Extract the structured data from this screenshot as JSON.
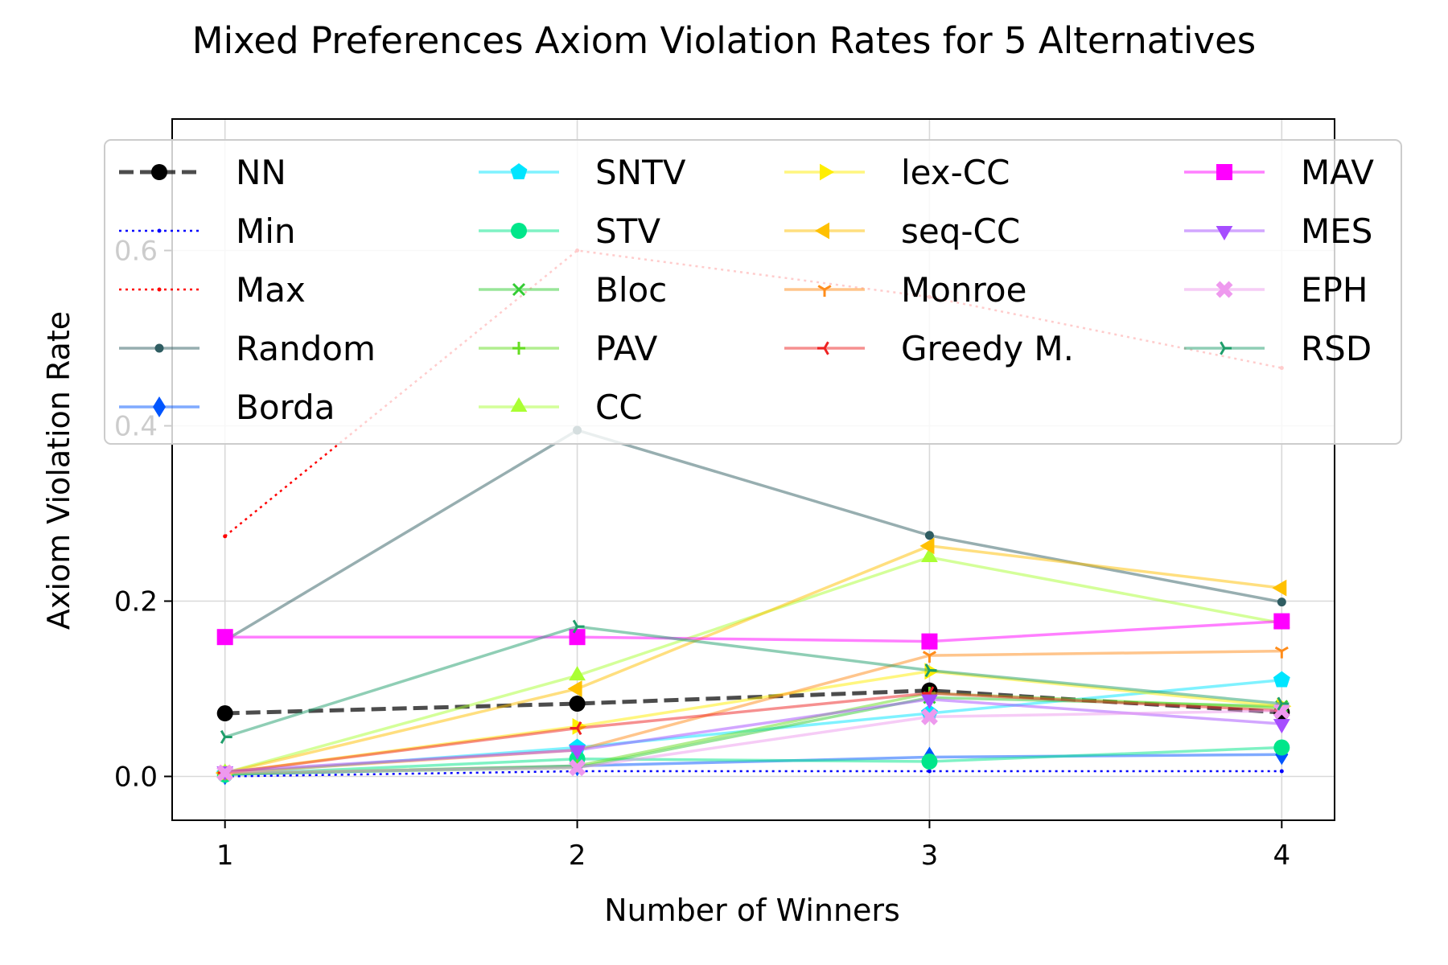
{
  "chart_data": {
    "type": "line",
    "title": "Mixed Preferences Axiom Violation Rates for 5 Alternatives",
    "xlabel": "Number of Winners",
    "ylabel": "Axiom Violation Rate",
    "x": [
      1,
      2,
      3,
      4
    ],
    "x_ticks": [
      "1",
      "2",
      "3",
      "4"
    ],
    "y_ticks": [
      "0.0",
      "0.2",
      "0.4",
      "0.6"
    ],
    "xlim": [
      0.85,
      4.15
    ],
    "ylim": [
      -0.05,
      0.75
    ],
    "grid": true,
    "legend_position": "top",
    "legend_columns": 4,
    "series": [
      {
        "name": "NN",
        "color": "#000000",
        "marker": "circle",
        "dash": "dashed",
        "values": [
          0.072,
          0.083,
          0.098,
          0.073
        ]
      },
      {
        "name": "Min",
        "color": "#0000ff",
        "marker": "point",
        "dash": "dotted",
        "values": [
          0.0,
          0.006,
          0.006,
          0.006
        ]
      },
      {
        "name": "Max",
        "color": "#ff0000",
        "marker": "point",
        "dash": "dotted",
        "values": [
          0.274,
          0.6,
          0.547,
          0.466
        ]
      },
      {
        "name": "Random",
        "color": "#2f5d62",
        "marker": "circle-small",
        "values": [
          0.155,
          0.395,
          0.275,
          0.199
        ]
      },
      {
        "name": "Borda",
        "color": "#0055ff",
        "marker": "diamond",
        "values": [
          0.002,
          0.012,
          0.022,
          0.025
        ]
      },
      {
        "name": "SNTV",
        "color": "#00e5ff",
        "marker": "pentagon",
        "values": [
          0.003,
          0.033,
          0.072,
          0.11
        ]
      },
      {
        "name": "STV",
        "color": "#00e68a",
        "marker": "circle",
        "values": [
          0.002,
          0.02,
          0.017,
          0.033
        ]
      },
      {
        "name": "Bloc",
        "color": "#33cc33",
        "marker": "x",
        "values": [
          0.003,
          0.01,
          0.09,
          0.08
        ]
      },
      {
        "name": "PAV",
        "color": "#66dd22",
        "marker": "plus",
        "values": [
          0.003,
          0.012,
          0.095,
          0.078
        ]
      },
      {
        "name": "CC",
        "color": "#aaff33",
        "marker": "triangle-up",
        "values": [
          0.004,
          0.115,
          0.25,
          0.175
        ]
      },
      {
        "name": "lex-CC",
        "color": "#ffee00",
        "marker": "triangle-right",
        "values": [
          0.004,
          0.057,
          0.12,
          0.08
        ]
      },
      {
        "name": "seq-CC",
        "color": "#ffc000",
        "marker": "triangle-left",
        "values": [
          0.004,
          0.1,
          0.263,
          0.215
        ]
      },
      {
        "name": "Monroe",
        "color": "#ff8c1a",
        "marker": "tri-down",
        "values": [
          0.004,
          0.03,
          0.138,
          0.143
        ]
      },
      {
        "name": "Greedy M.",
        "color": "#ee2222",
        "marker": "tri-left",
        "values": [
          0.004,
          0.055,
          0.095,
          0.075
        ]
      },
      {
        "name": "MAV",
        "color": "#ff00ff",
        "marker": "square",
        "values": [
          0.159,
          0.159,
          0.154,
          0.177
        ]
      },
      {
        "name": "MES",
        "color": "#a64dff",
        "marker": "triangle-down",
        "values": [
          0.006,
          0.03,
          0.088,
          0.06
        ]
      },
      {
        "name": "EPH",
        "color": "#ee99ee",
        "marker": "x-thick",
        "values": [
          0.004,
          0.01,
          0.068,
          0.075
        ]
      },
      {
        "name": "RSD",
        "color": "#1f9e6b",
        "marker": "tri-right",
        "values": [
          0.045,
          0.171,
          0.121,
          0.083
        ]
      }
    ]
  }
}
